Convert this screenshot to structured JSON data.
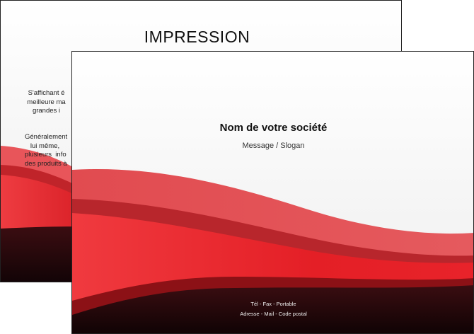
{
  "back_sheet": {
    "heading": "IMPRESSION",
    "paragraph1": "S'affichant é\nmeilleure ma\ngrandes i",
    "paragraph2": "Généralement\n   lui même,\nplusieurs  info\ndes produits à"
  },
  "front_sheet": {
    "company": "Nom de votre société",
    "slogan": "Message / Slogan",
    "contact_line1": "Tél - Fax - Portable",
    "contact_line2": "Adresse - Mail - Code postal"
  },
  "colors": {
    "red_light": "#e8555a",
    "red_main": "#e41f26",
    "red_dark": "#a8141a",
    "burgundy": "#2a0a0d"
  }
}
